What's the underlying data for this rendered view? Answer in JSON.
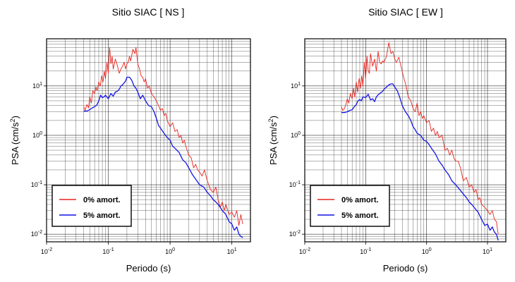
{
  "chart_data": [
    {
      "type": "line",
      "title": "Sitio SIAC [ NS ]",
      "xlabel": "Periodo (s)",
      "ylabel_main": "PSA (cm/s",
      "ylabel_sup": "2",
      "ylabel_tail": ")",
      "xscale": "log",
      "yscale": "log",
      "xlim": [
        0.01,
        20
      ],
      "ylim": [
        0.007,
        90
      ],
      "grid": true,
      "legend_position": "bottom-left",
      "x_ticks": [
        {
          "value": 0.01,
          "base": "10",
          "exp": "-2"
        },
        {
          "value": 0.1,
          "base": "10",
          "exp": "-1"
        },
        {
          "value": 1,
          "base": "10",
          "exp": "0"
        },
        {
          "value": 10,
          "base": "10",
          "exp": "1"
        }
      ],
      "y_ticks": [
        {
          "value": 0.01,
          "base": "10",
          "exp": "-2"
        },
        {
          "value": 0.1,
          "base": "10",
          "exp": "-1"
        },
        {
          "value": 1,
          "base": "10",
          "exp": "0"
        },
        {
          "value": 10,
          "base": "10",
          "exp": "1"
        }
      ],
      "series": [
        {
          "name": "0% amort.",
          "color": "#e8241e",
          "x": [
            0.04,
            0.042,
            0.045,
            0.048,
            0.05,
            0.053,
            0.056,
            0.06,
            0.063,
            0.066,
            0.07,
            0.074,
            0.078,
            0.082,
            0.086,
            0.09,
            0.095,
            0.1,
            0.105,
            0.11,
            0.115,
            0.12,
            0.13,
            0.14,
            0.15,
            0.16,
            0.17,
            0.18,
            0.19,
            0.2,
            0.21,
            0.22,
            0.23,
            0.25,
            0.27,
            0.28,
            0.3,
            0.32,
            0.34,
            0.36,
            0.38,
            0.4,
            0.43,
            0.46,
            0.5,
            0.55,
            0.6,
            0.65,
            0.7,
            0.75,
            0.8,
            0.85,
            0.9,
            1.0,
            1.1,
            1.2,
            1.3,
            1.4,
            1.5,
            1.6,
            1.7,
            1.8,
            2.0,
            2.2,
            2.4,
            2.6,
            2.8,
            3.0,
            3.3,
            3.6,
            4.0,
            4.5,
            5.0,
            5.5,
            6.0,
            6.5,
            7.0,
            7.5,
            8.0,
            9.0,
            10.0,
            11.0,
            12.0,
            13.0,
            14.0,
            15.0
          ],
          "y": [
            3.8,
            3.2,
            4.2,
            3.6,
            6.0,
            4.5,
            8.0,
            7.0,
            9.5,
            8.0,
            12.0,
            10.0,
            16.0,
            12.0,
            20.0,
            14.0,
            30.0,
            18.0,
            60.0,
            28.0,
            40.0,
            22.0,
            35.0,
            26.0,
            18.0,
            22.0,
            25.0,
            30.0,
            22.0,
            28.0,
            30.0,
            40.0,
            32.0,
            55.0,
            45.0,
            60.0,
            28.0,
            22.0,
            16.0,
            15.0,
            12.0,
            14.0,
            9.0,
            10.0,
            7.0,
            6.0,
            5.0,
            4.0,
            3.2,
            3.5,
            2.5,
            2.8,
            2.0,
            1.5,
            1.8,
            1.2,
            1.3,
            0.9,
            1.0,
            0.7,
            0.8,
            0.6,
            0.4,
            0.35,
            0.22,
            0.26,
            0.2,
            0.18,
            0.15,
            0.2,
            0.12,
            0.08,
            0.07,
            0.09,
            0.05,
            0.035,
            0.045,
            0.03,
            0.04,
            0.025,
            0.028,
            0.022,
            0.03,
            0.015,
            0.025,
            0.016
          ]
        },
        {
          "name": "5% amort.",
          "color": "#1414e6",
          "x": [
            0.04,
            0.045,
            0.05,
            0.055,
            0.06,
            0.065,
            0.07,
            0.075,
            0.08,
            0.085,
            0.09,
            0.1,
            0.11,
            0.12,
            0.13,
            0.14,
            0.15,
            0.16,
            0.17,
            0.18,
            0.19,
            0.2,
            0.22,
            0.24,
            0.26,
            0.28,
            0.3,
            0.33,
            0.36,
            0.4,
            0.45,
            0.5,
            0.55,
            0.6,
            0.65,
            0.7,
            0.8,
            0.9,
            1.0,
            1.1,
            1.2,
            1.4,
            1.6,
            1.8,
            2.0,
            2.3,
            2.6,
            3.0,
            3.5,
            4.0,
            4.5,
            5.0,
            5.5,
            6.0,
            7.0,
            8.0,
            9.0,
            10.0,
            11.0,
            12.0,
            13.0,
            14.0,
            15.0
          ],
          "y": [
            3.1,
            3.1,
            3.3,
            3.6,
            3.8,
            4.1,
            5.0,
            6.5,
            5.8,
            6.0,
            6.5,
            5.5,
            7.0,
            6.2,
            7.5,
            7.8,
            8.5,
            10.0,
            10.5,
            11.5,
            12.5,
            15.0,
            15.0,
            13.0,
            10.0,
            9.0,
            7.5,
            5.5,
            6.5,
            5.0,
            4.0,
            3.8,
            3.0,
            2.2,
            1.6,
            1.4,
            1.1,
            0.9,
            0.8,
            0.6,
            0.55,
            0.45,
            0.32,
            0.28,
            0.22,
            0.16,
            0.13,
            0.1,
            0.09,
            0.07,
            0.06,
            0.05,
            0.045,
            0.04,
            0.03,
            0.025,
            0.018,
            0.016,
            0.012,
            0.014,
            0.01,
            0.009,
            0.0085
          ]
        }
      ]
    },
    {
      "type": "line",
      "title": "Sitio SIAC [ EW ]",
      "xlabel": "Periodo (s)",
      "ylabel_main": "PSA (cm/s",
      "ylabel_sup": "2",
      "ylabel_tail": ")",
      "xscale": "log",
      "yscale": "log",
      "xlim": [
        0.01,
        20
      ],
      "ylim": [
        0.007,
        90
      ],
      "grid": true,
      "legend_position": "bottom-left",
      "x_ticks": [
        {
          "value": 0.01,
          "base": "10",
          "exp": "-2"
        },
        {
          "value": 0.1,
          "base": "10",
          "exp": "-1"
        },
        {
          "value": 1,
          "base": "10",
          "exp": "0"
        },
        {
          "value": 10,
          "base": "10",
          "exp": "1"
        }
      ],
      "y_ticks": [
        {
          "value": 0.01,
          "base": "10",
          "exp": "-2"
        },
        {
          "value": 0.1,
          "base": "10",
          "exp": "-1"
        },
        {
          "value": 1,
          "base": "10",
          "exp": "0"
        },
        {
          "value": 10,
          "base": "10",
          "exp": "1"
        }
      ],
      "series": [
        {
          "name": "0% amort.",
          "color": "#e8241e",
          "x": [
            0.04,
            0.042,
            0.045,
            0.048,
            0.05,
            0.053,
            0.056,
            0.06,
            0.063,
            0.066,
            0.07,
            0.074,
            0.078,
            0.082,
            0.086,
            0.09,
            0.095,
            0.1,
            0.105,
            0.11,
            0.115,
            0.12,
            0.13,
            0.14,
            0.15,
            0.16,
            0.17,
            0.18,
            0.19,
            0.2,
            0.22,
            0.24,
            0.26,
            0.28,
            0.3,
            0.32,
            0.35,
            0.38,
            0.42,
            0.46,
            0.5,
            0.55,
            0.6,
            0.65,
            0.7,
            0.75,
            0.8,
            0.85,
            0.9,
            1.0,
            1.1,
            1.2,
            1.3,
            1.4,
            1.5,
            1.6,
            1.8,
            2.0,
            2.2,
            2.4,
            2.6,
            2.8,
            3.0,
            3.3,
            3.6,
            4.0,
            4.5,
            5.0,
            5.5,
            6.0,
            6.5,
            7.0,
            7.5,
            8.0,
            9.0,
            10.0,
            11.0,
            12.0,
            13.0,
            14.0,
            15.0
          ],
          "y": [
            3.8,
            3.2,
            3.5,
            4.5,
            5.5,
            4.5,
            7.0,
            5.5,
            9.0,
            6.0,
            12.0,
            7.5,
            14.0,
            9.0,
            16.0,
            10.0,
            30.0,
            14.0,
            40.0,
            20.0,
            18.0,
            45.0,
            25.0,
            35.0,
            20.0,
            50.0,
            30.0,
            28.0,
            32.0,
            30.0,
            40.0,
            75.0,
            45.0,
            50.0,
            35.0,
            30.0,
            38.0,
            25.0,
            15.0,
            10.0,
            6.0,
            5.0,
            3.5,
            3.0,
            4.5,
            2.5,
            3.0,
            2.2,
            2.5,
            1.8,
            2.0,
            1.2,
            1.4,
            1.0,
            1.2,
            0.9,
            1.0,
            0.5,
            0.55,
            0.4,
            0.5,
            0.35,
            0.3,
            0.3,
            0.22,
            0.12,
            0.14,
            0.09,
            0.1,
            0.07,
            0.08,
            0.05,
            0.055,
            0.04,
            0.035,
            0.03,
            0.025,
            0.03,
            0.02,
            0.018,
            0.01
          ]
        },
        {
          "name": "5% amort.",
          "color": "#1414e6",
          "x": [
            0.04,
            0.045,
            0.05,
            0.055,
            0.06,
            0.065,
            0.07,
            0.075,
            0.08,
            0.085,
            0.09,
            0.1,
            0.11,
            0.12,
            0.13,
            0.14,
            0.15,
            0.16,
            0.17,
            0.18,
            0.19,
            0.2,
            0.22,
            0.24,
            0.26,
            0.28,
            0.3,
            0.33,
            0.36,
            0.4,
            0.45,
            0.5,
            0.55,
            0.6,
            0.65,
            0.7,
            0.8,
            0.9,
            1.0,
            1.1,
            1.2,
            1.4,
            1.6,
            1.8,
            2.0,
            2.3,
            2.6,
            3.0,
            3.5,
            4.0,
            4.5,
            5.0,
            5.5,
            6.0,
            7.0,
            8.0,
            9.0,
            10.0,
            11.0,
            12.0,
            13.0,
            14.0,
            15.0
          ],
          "y": [
            2.9,
            2.9,
            3.0,
            3.2,
            3.3,
            3.8,
            4.2,
            5.0,
            5.3,
            5.0,
            6.0,
            5.8,
            6.8,
            5.2,
            5.5,
            4.8,
            6.0,
            6.6,
            7.0,
            7.4,
            7.8,
            8.5,
            9.5,
            10.5,
            11.0,
            11.0,
            9.5,
            8.0,
            6.0,
            4.0,
            3.0,
            2.5,
            2.0,
            1.5,
            1.3,
            1.1,
            1.0,
            0.8,
            0.75,
            0.65,
            0.55,
            0.42,
            0.3,
            0.25,
            0.2,
            0.16,
            0.12,
            0.1,
            0.08,
            0.065,
            0.055,
            0.045,
            0.04,
            0.035,
            0.028,
            0.02,
            0.015,
            0.016,
            0.012,
            0.014,
            0.011,
            0.01,
            0.0075
          ]
        }
      ]
    }
  ]
}
